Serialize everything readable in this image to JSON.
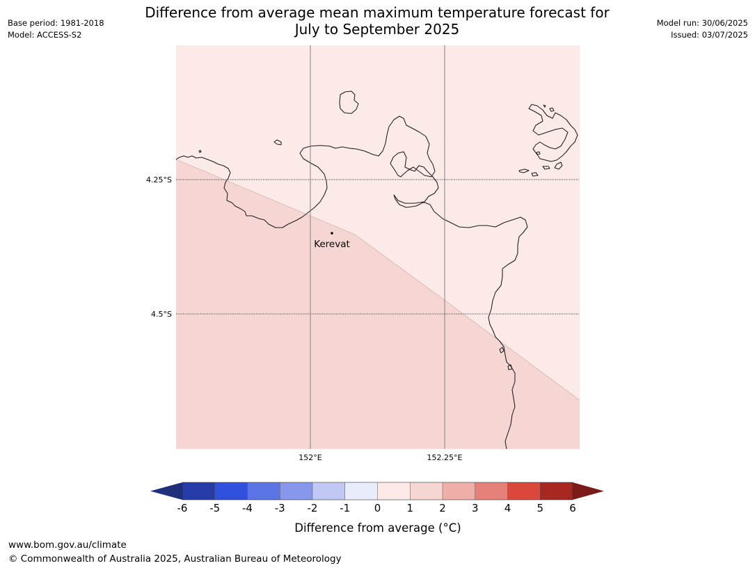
{
  "header": {
    "title_line1": "Difference from average mean maximum temperature forecast for",
    "title_line2": "July to September 2025",
    "base_period": "Base period: 1981-2018",
    "model": "Model: ACCESS-S2",
    "model_run": "Model run: 30/06/2025",
    "issued": "Issued: 03/07/2025"
  },
  "map": {
    "lat_labels": [
      "4.25°S",
      "4.5°S"
    ],
    "lon_labels": [
      "152°E",
      "152.25°E"
    ],
    "place": {
      "name": "Kerevat"
    },
    "zones": [
      {
        "range": "0 to 1",
        "color": "#fbeae8"
      },
      {
        "range": "1 to 2",
        "color": "#f6d6d3"
      }
    ]
  },
  "colorbar": {
    "label": "Difference from average (°C)",
    "ticks": [
      "-6",
      "-5",
      "-4",
      "-3",
      "-2",
      "-1",
      "0",
      "1",
      "2",
      "3",
      "4",
      "5",
      "6"
    ],
    "colors": [
      "#263ba8",
      "#3050de",
      "#5b74e6",
      "#8797eb",
      "#c1c8f4",
      "#e9ecfb",
      "#fbeae8",
      "#f6d6d3",
      "#efaea8",
      "#e6817a",
      "#dc473c",
      "#a82720"
    ],
    "under_color": "#1f2f7a",
    "over_color": "#7b1b17"
  },
  "footer": {
    "url": "www.bom.gov.au/climate",
    "copyright": "© Commonwealth of Australia 2025, Australian Bureau of Meteorology"
  }
}
